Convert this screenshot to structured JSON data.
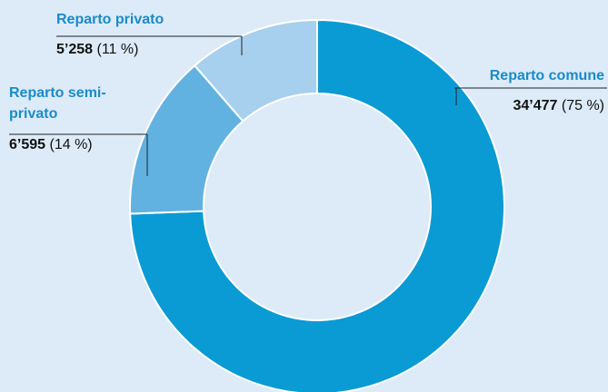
{
  "chart_data": {
    "type": "donut",
    "categories": [
      "Reparto comune",
      "Reparto semi-privato",
      "Reparto privato"
    ],
    "values": [
      34477,
      6595,
      5258
    ],
    "value_labels": [
      "34’477",
      "6’595",
      "5’258"
    ],
    "percentages": [
      75,
      14,
      11
    ],
    "percentage_labels": [
      "(75 %)",
      "(14 %)",
      "(11 %)"
    ],
    "colors": [
      "#0a9bd5",
      "#62b2e1",
      "#a7d0ee"
    ]
  }
}
